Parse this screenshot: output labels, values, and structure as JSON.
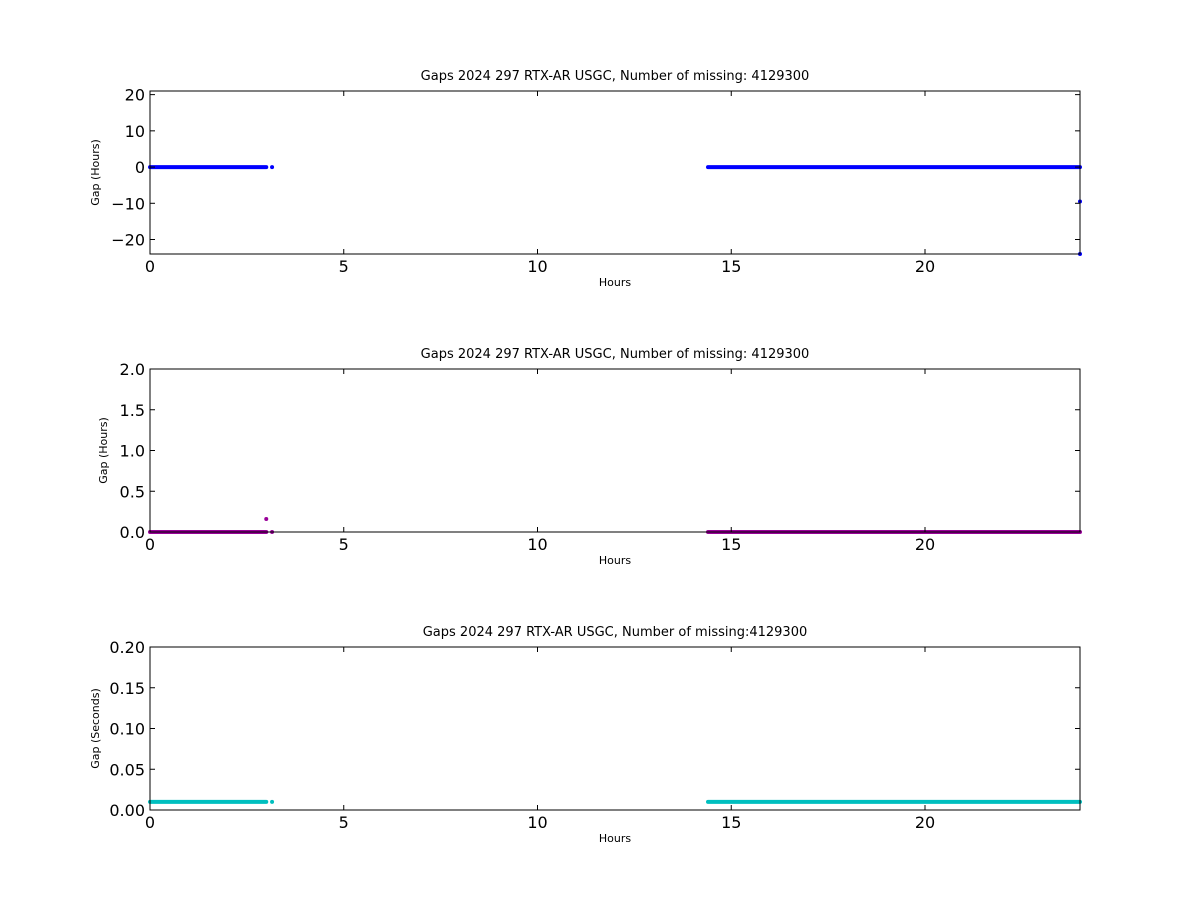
{
  "chart_data": [
    {
      "type": "scatter",
      "title": "Gaps 2024 297 RTX-AR  USGC, Number of missing: 4129300",
      "xlabel": "Hours",
      "ylabel": "Gap (Hours)",
      "xlim": [
        0,
        24
      ],
      "ylim": [
        -24,
        21
      ],
      "xticks": [
        0,
        5,
        10,
        15,
        20
      ],
      "xtick_labels": [
        "0",
        "5",
        "10",
        "15",
        "20"
      ],
      "yticks": [
        -20,
        -10,
        0,
        10,
        20
      ],
      "ytick_labels": [
        "−20",
        "−10",
        "0",
        "10",
        "20"
      ],
      "grid": false,
      "color": "#0000ff",
      "series": [
        {
          "segments": [
            {
              "x_start": 0.0,
              "x_end": 3.0,
              "y": 0.0
            },
            {
              "x_start": 14.4,
              "x_end": 24.0,
              "y": 0.0
            }
          ],
          "points": [
            {
              "x": 3.15,
              "y": 0.0
            },
            {
              "x": 24.0,
              "y": -9.5
            },
            {
              "x": 24.0,
              "y": -24.0
            }
          ]
        }
      ]
    },
    {
      "type": "scatter",
      "title": "Gaps 2024 297 RTX-AR  USGC, Number of missing: 4129300",
      "xlabel": "Hours",
      "ylabel": "Gap (Hours)",
      "xlim": [
        0,
        24
      ],
      "ylim": [
        0,
        2
      ],
      "xticks": [
        0,
        5,
        10,
        15,
        20
      ],
      "xtick_labels": [
        "0",
        "5",
        "10",
        "15",
        "20"
      ],
      "yticks": [
        0,
        0.5,
        1,
        1.5,
        2
      ],
      "ytick_labels": [
        "0.0",
        "0.5",
        "1.0",
        "1.5",
        "2.0"
      ],
      "grid": false,
      "color": "#990099",
      "series": [
        {
          "segments": [
            {
              "x_start": 0.0,
              "x_end": 3.0,
              "y": 0.0
            },
            {
              "x_start": 14.4,
              "x_end": 24.0,
              "y": 0.0
            }
          ],
          "points": [
            {
              "x": 3.0,
              "y": 0.16
            },
            {
              "x": 3.15,
              "y": 0.0
            }
          ]
        }
      ]
    },
    {
      "type": "scatter",
      "title": "Gaps 2024 297 RTX-AR  USGC, Number of missing:4129300",
      "xlabel": "Hours",
      "ylabel": "Gap (Seconds)",
      "xlim": [
        0,
        24
      ],
      "ylim": [
        0,
        0.2
      ],
      "xticks": [
        0,
        5,
        10,
        15,
        20
      ],
      "xtick_labels": [
        "0",
        "5",
        "10",
        "15",
        "20"
      ],
      "yticks": [
        0,
        0.05,
        0.1,
        0.15,
        0.2
      ],
      "ytick_labels": [
        "0.00",
        "0.05",
        "0.10",
        "0.15",
        "0.20"
      ],
      "grid": false,
      "color": "#00bfbf",
      "series": [
        {
          "segments": [
            {
              "x_start": 0.0,
              "x_end": 3.0,
              "y": 0.01
            },
            {
              "x_start": 14.4,
              "x_end": 24.0,
              "y": 0.01
            }
          ],
          "points": [
            {
              "x": 3.15,
              "y": 0.01
            }
          ]
        }
      ]
    }
  ]
}
